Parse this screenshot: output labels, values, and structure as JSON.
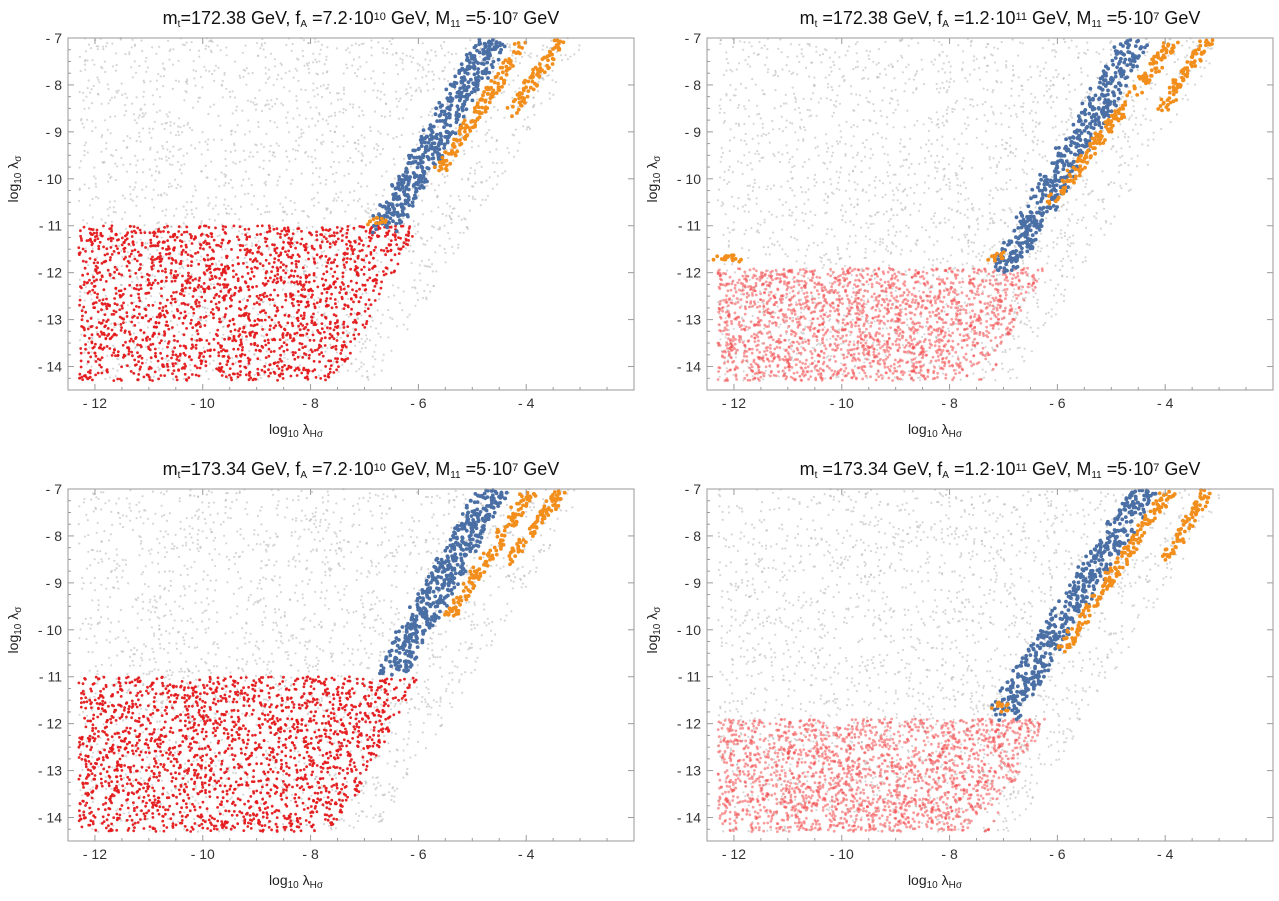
{
  "chart_data": [
    {
      "type": "scatter",
      "title_parts": [
        {
          "t": "m",
          "k": "n"
        },
        {
          "t": "t",
          "k": "sub"
        },
        {
          "t": "=172.38 GeV, f",
          "k": "n"
        },
        {
          "t": "A",
          "k": "sub"
        },
        {
          "t": " =7.2·10",
          "k": "n"
        },
        {
          "t": "10",
          "k": "sup"
        },
        {
          "t": " GeV, M",
          "k": "n"
        },
        {
          "t": "11",
          "k": "sub"
        },
        {
          "t": " =5·10",
          "k": "n"
        },
        {
          "t": "7",
          "k": "sup"
        },
        {
          "t": " GeV",
          "k": "n"
        }
      ],
      "xlabel_parts": [
        {
          "t": "log",
          "k": "n"
        },
        {
          "t": "10",
          "k": "sub"
        },
        {
          "t": " λ",
          "k": "n"
        },
        {
          "t": "Hσ",
          "k": "sub"
        }
      ],
      "ylabel_parts": [
        {
          "t": "log",
          "k": "n"
        },
        {
          "t": "10",
          "k": "sub"
        },
        {
          "t": " λ",
          "k": "n"
        },
        {
          "t": "σ",
          "k": "sub"
        }
      ],
      "xlim": [
        -12.5,
        -2
      ],
      "ylim": [
        -14.5,
        -7
      ],
      "xticks": [
        -12,
        -10,
        -8,
        -6,
        -4
      ],
      "yticks": [
        -7,
        -8,
        -9,
        -10,
        -11,
        -12,
        -13,
        -14
      ],
      "xtick_labels": [
        "- 12",
        "- 10",
        "- 8",
        "- 6",
        "- 4"
      ],
      "ytick_labels": [
        "- 7",
        "- 8",
        "- 9",
        "- 10",
        "- 11",
        "- 12",
        "- 13",
        "- 14"
      ],
      "regions": {
        "gray": {
          "color": "#b5b5b5",
          "opacity": 0.55
        },
        "red": {
          "color": "#e41a1c",
          "opacity": 0.95,
          "y_top": -11,
          "x_right": -6
        },
        "blue": {
          "color": "#4a6fa5",
          "bands": [
            {
              "x0": -6.6,
              "y0": -11,
              "x1": -4.6,
              "y1": -7
            }
          ]
        },
        "orange": {
          "color": "#f28e1c",
          "bands": [
            {
              "x0": -6.9,
              "y0": -10.9,
              "x1": -6.6,
              "y1": -10.9
            },
            {
              "x0": -5.6,
              "y0": -9.8,
              "x1": -4.0,
              "y1": -7
            },
            {
              "x0": -4.3,
              "y0": -8.6,
              "x1": -3.3,
              "y1": -7
            }
          ]
        }
      }
    },
    {
      "type": "scatter",
      "title_parts": [
        {
          "t": "m",
          "k": "n"
        },
        {
          "t": "t",
          "k": "sub"
        },
        {
          "t": " =172.38 GeV, f",
          "k": "n"
        },
        {
          "t": "A",
          "k": "sub"
        },
        {
          "t": " =1.2·10",
          "k": "n"
        },
        {
          "t": "11",
          "k": "sup"
        },
        {
          "t": " GeV, M",
          "k": "n"
        },
        {
          "t": "11",
          "k": "sub"
        },
        {
          "t": " =5·10",
          "k": "n"
        },
        {
          "t": "7",
          "k": "sup"
        },
        {
          "t": " GeV",
          "k": "n"
        }
      ],
      "xlabel_parts": [
        {
          "t": "log",
          "k": "n"
        },
        {
          "t": "10",
          "k": "sub"
        },
        {
          "t": " λ",
          "k": "n"
        },
        {
          "t": "Hσ",
          "k": "sub"
        }
      ],
      "ylabel_parts": [
        {
          "t": "log",
          "k": "n"
        },
        {
          "t": "10",
          "k": "sub"
        },
        {
          "t": " λ",
          "k": "n"
        },
        {
          "t": "σ",
          "k": "sub"
        }
      ],
      "xlim": [
        -12.5,
        -2
      ],
      "ylim": [
        -14.5,
        -7
      ],
      "xticks": [
        -12,
        -10,
        -8,
        -6,
        -4
      ],
      "yticks": [
        -7,
        -8,
        -9,
        -10,
        -11,
        -12,
        -13,
        -14
      ],
      "xtick_labels": [
        "- 12",
        "- 10",
        "- 8",
        "- 6",
        "- 4"
      ],
      "ytick_labels": [
        "- 7",
        "- 8",
        "- 9",
        "- 10",
        "- 11",
        "- 12",
        "- 13",
        "- 14"
      ],
      "regions": {
        "gray": {
          "color": "#b5b5b5",
          "opacity": 0.55
        },
        "red": {
          "color": "#f24a4c",
          "opacity": 0.55,
          "y_top": -11.9,
          "x_right": -6.2
        },
        "blue": {
          "color": "#4a6fa5",
          "bands": [
            {
              "x0": -7.0,
              "y0": -11.9,
              "x1": -4.5,
              "y1": -7
            }
          ]
        },
        "orange": {
          "color": "#f28e1c",
          "bands": [
            {
              "x0": -12.3,
              "y0": -11.7,
              "x1": -11.9,
              "y1": -11.7
            },
            {
              "x0": -7.2,
              "y0": -11.7,
              "x1": -7.0,
              "y1": -11.6
            },
            {
              "x0": -6.1,
              "y0": -10.5,
              "x1": -3.8,
              "y1": -7
            },
            {
              "x0": -4.1,
              "y0": -8.6,
              "x1": -3.2,
              "y1": -7
            }
          ]
        }
      }
    },
    {
      "type": "scatter",
      "title_parts": [
        {
          "t": "m",
          "k": "n"
        },
        {
          "t": "t",
          "k": "sub"
        },
        {
          "t": "=173.34 GeV, f",
          "k": "n"
        },
        {
          "t": "A",
          "k": "sub"
        },
        {
          "t": " =7.2·10",
          "k": "n"
        },
        {
          "t": "10",
          "k": "sup"
        },
        {
          "t": " GeV, M",
          "k": "n"
        },
        {
          "t": "11",
          "k": "sub"
        },
        {
          "t": " =5·10",
          "k": "n"
        },
        {
          "t": "7",
          "k": "sup"
        },
        {
          "t": " GeV",
          "k": "n"
        }
      ],
      "xlabel_parts": [
        {
          "t": "log",
          "k": "n"
        },
        {
          "t": "10",
          "k": "sub"
        },
        {
          "t": " λ",
          "k": "n"
        },
        {
          "t": "Hσ",
          "k": "sub"
        }
      ],
      "ylabel_parts": [
        {
          "t": "log",
          "k": "n"
        },
        {
          "t": "10",
          "k": "sub"
        },
        {
          "t": " λ",
          "k": "n"
        },
        {
          "t": "σ",
          "k": "sub"
        }
      ],
      "xlim": [
        -12.5,
        -2
      ],
      "ylim": [
        -14.5,
        -7
      ],
      "xticks": [
        -12,
        -10,
        -8,
        -6,
        -4
      ],
      "yticks": [
        -7,
        -8,
        -9,
        -10,
        -11,
        -12,
        -13,
        -14
      ],
      "xtick_labels": [
        "- 12",
        "- 10",
        "- 8",
        "- 6",
        "- 4"
      ],
      "ytick_labels": [
        "- 7",
        "- 8",
        "- 9",
        "- 10",
        "- 11",
        "- 12",
        "- 13",
        "- 14"
      ],
      "regions": {
        "gray": {
          "color": "#b5b5b5",
          "opacity": 0.55
        },
        "red": {
          "color": "#e41a1c",
          "opacity": 0.95,
          "y_top": -11,
          "x_right": -6
        },
        "blue": {
          "color": "#4a6fa5",
          "bands": [
            {
              "x0": -6.5,
              "y0": -10.9,
              "x1": -4.6,
              "y1": -7
            }
          ]
        },
        "orange": {
          "color": "#f28e1c",
          "bands": [
            {
              "x0": -5.4,
              "y0": -9.7,
              "x1": -3.9,
              "y1": -7
            },
            {
              "x0": -4.4,
              "y0": -8.6,
              "x1": -3.3,
              "y1": -7
            }
          ]
        }
      }
    },
    {
      "type": "scatter",
      "title_parts": [
        {
          "t": "m",
          "k": "n"
        },
        {
          "t": "t",
          "k": "sub"
        },
        {
          "t": " =173.34 GeV, f",
          "k": "n"
        },
        {
          "t": "A",
          "k": "sub"
        },
        {
          "t": " =1.2·10",
          "k": "n"
        },
        {
          "t": "11",
          "k": "sup"
        },
        {
          "t": " GeV, M",
          "k": "n"
        },
        {
          "t": "11",
          "k": "sub"
        },
        {
          "t": " =5·10",
          "k": "n"
        },
        {
          "t": "7",
          "k": "sup"
        },
        {
          "t": " GeV",
          "k": "n"
        }
      ],
      "xlabel_parts": [
        {
          "t": "log",
          "k": "n"
        },
        {
          "t": "10",
          "k": "sub"
        },
        {
          "t": " λ",
          "k": "n"
        },
        {
          "t": "Hσ",
          "k": "sub"
        }
      ],
      "ylabel_parts": [
        {
          "t": "log",
          "k": "n"
        },
        {
          "t": "10",
          "k": "sub"
        },
        {
          "t": " λ",
          "k": "n"
        },
        {
          "t": "σ",
          "k": "sub"
        }
      ],
      "xlim": [
        -12.5,
        -2
      ],
      "ylim": [
        -14.5,
        -7
      ],
      "xticks": [
        -12,
        -10,
        -8,
        -6,
        -4
      ],
      "yticks": [
        -7,
        -8,
        -9,
        -10,
        -11,
        -12,
        -13,
        -14
      ],
      "xtick_labels": [
        "- 12",
        "- 10",
        "- 8",
        "- 6",
        "- 4"
      ],
      "ytick_labels": [
        "- 7",
        "- 8",
        "- 9",
        "- 10",
        "- 11",
        "- 12",
        "- 13",
        "- 14"
      ],
      "regions": {
        "gray": {
          "color": "#b5b5b5",
          "opacity": 0.55
        },
        "red": {
          "color": "#f24a4c",
          "opacity": 0.55,
          "y_top": -11.9,
          "x_right": -6.2
        },
        "blue": {
          "color": "#4a6fa5",
          "bands": [
            {
              "x0": -7.0,
              "y0": -11.8,
              "x1": -4.4,
              "y1": -7
            }
          ]
        },
        "orange": {
          "color": "#f28e1c",
          "bands": [
            {
              "x0": -7.1,
              "y0": -11.7,
              "x1": -7.0,
              "y1": -11.6
            },
            {
              "x0": -5.9,
              "y0": -10.4,
              "x1": -3.9,
              "y1": -7
            },
            {
              "x0": -4.0,
              "y0": -8.5,
              "x1": -3.2,
              "y1": -7
            }
          ]
        }
      }
    }
  ]
}
